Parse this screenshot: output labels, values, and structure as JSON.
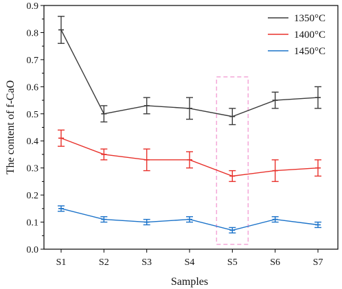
{
  "chart_data": {
    "type": "line",
    "xlabel": "Samples",
    "ylabel": "The content of f-CaO",
    "categories": [
      "S1",
      "S2",
      "S3",
      "S4",
      "S5",
      "S6",
      "S7"
    ],
    "ylim": [
      0,
      0.9
    ],
    "yticks": [
      0.0,
      0.1,
      0.2,
      0.3,
      0.4,
      0.5,
      0.6,
      0.7,
      0.8,
      0.9
    ],
    "ytick_labels": [
      "0.0",
      "0.1",
      "0.2",
      "0.3",
      "0.4",
      "0.5",
      "0.6",
      "0.7",
      "0.8",
      "0.9"
    ],
    "grid": false,
    "legend_position": "top-right",
    "series": [
      {
        "name": "1350°C",
        "color": "#3a3a3a",
        "values": [
          0.81,
          0.5,
          0.53,
          0.52,
          0.49,
          0.55,
          0.56
        ],
        "errors": [
          0.05,
          0.03,
          0.03,
          0.04,
          0.03,
          0.03,
          0.04
        ]
      },
      {
        "name": "1400°C",
        "color": "#e8302a",
        "values": [
          0.41,
          0.35,
          0.33,
          0.33,
          0.27,
          0.29,
          0.3
        ],
        "errors": [
          0.03,
          0.02,
          0.04,
          0.03,
          0.02,
          0.04,
          0.03
        ]
      },
      {
        "name": "1450°C",
        "color": "#1a72c9",
        "values": [
          0.15,
          0.11,
          0.1,
          0.11,
          0.07,
          0.11,
          0.09
        ],
        "errors": [
          0.01,
          0.01,
          0.01,
          0.01,
          0.01,
          0.01,
          0.01
        ]
      }
    ],
    "highlight": {
      "category": "S5",
      "color": "#f4a6d7",
      "style": "dashed"
    }
  }
}
